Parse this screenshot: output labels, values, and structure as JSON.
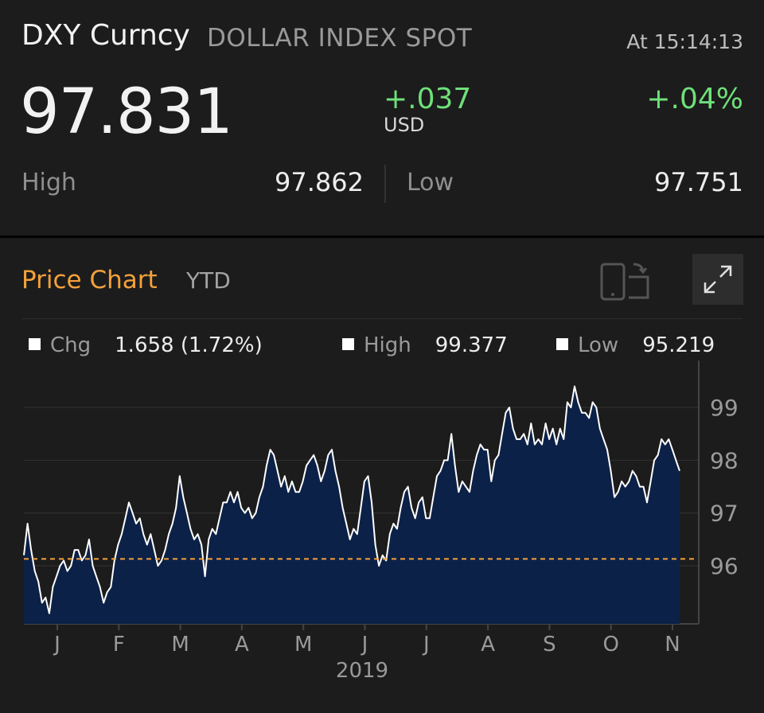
{
  "quote": {
    "ticker": "DXY Curncy",
    "name": "DOLLAR INDEX SPOT",
    "time": "At 15:14:13",
    "price": "97.831",
    "change": "+.037",
    "currency": "USD",
    "change_pct": "+.04%",
    "high_label": "High",
    "high_value": "97.862",
    "low_label": "Low",
    "low_value": "97.751"
  },
  "price_chart": {
    "title": "Price Chart",
    "range": "YTD",
    "rotate_icon": "rotate-device-icon",
    "expand_icon": "expand-icon",
    "stats": [
      {
        "label": "Chg",
        "value": "1.658 (1.72%)"
      },
      {
        "label": "High",
        "value": "99.377"
      },
      {
        "label": "Low",
        "value": "95.219"
      }
    ]
  },
  "colors": {
    "background": "#1c1c1c",
    "accent": "#f5a13b",
    "positive": "#6ee07a",
    "area_fill": "#0c2147",
    "line": "#ffffff",
    "reference_line": "#f5a13b"
  },
  "chart_data": {
    "type": "area",
    "x_tick_labels": [
      "J",
      "F",
      "M",
      "A",
      "M",
      "J",
      "J",
      "A",
      "S",
      "O",
      "N"
    ],
    "x_axis_year": "2019",
    "y_ticks": [
      96,
      97,
      98,
      99
    ],
    "ylim": [
      94.9,
      99.8
    ],
    "reference_value": 96.13,
    "grid": true,
    "series": [
      {
        "values": [
          96.2,
          96.8,
          96.3,
          95.9,
          95.7,
          95.3,
          95.4,
          95.1,
          95.6,
          95.8,
          96.0,
          96.1,
          95.9,
          96.0,
          96.3,
          96.3,
          96.1,
          96.2,
          96.5,
          96.0,
          95.8,
          95.6,
          95.3,
          95.5,
          95.6,
          96.1,
          96.4,
          96.6,
          96.9,
          97.2,
          97.0,
          96.8,
          96.9,
          96.6,
          96.4,
          96.6,
          96.3,
          96.0,
          96.1,
          96.3,
          96.6,
          96.8,
          97.1,
          97.7,
          97.3,
          97.0,
          96.7,
          96.5,
          96.6,
          96.4,
          95.8,
          96.5,
          96.7,
          96.6,
          96.9,
          97.2,
          97.2,
          97.4,
          97.2,
          97.4,
          97.1,
          97.0,
          97.1,
          96.9,
          97.0,
          97.3,
          97.5,
          97.9,
          98.2,
          98.1,
          97.8,
          97.5,
          97.7,
          97.4,
          97.6,
          97.4,
          97.4,
          97.6,
          97.9,
          98.0,
          98.1,
          97.9,
          97.6,
          97.8,
          98.1,
          98.2,
          97.8,
          97.5,
          97.1,
          96.8,
          96.5,
          96.7,
          96.6,
          97.1,
          97.6,
          97.7,
          97.2,
          96.4,
          96.0,
          96.2,
          96.1,
          96.6,
          96.8,
          96.7,
          97.1,
          97.4,
          97.5,
          97.1,
          96.9,
          97.2,
          97.3,
          96.9,
          96.9,
          97.3,
          97.7,
          97.8,
          98.0,
          98.0,
          98.5,
          97.9,
          97.4,
          97.6,
          97.5,
          97.4,
          97.8,
          98.1,
          98.3,
          98.2,
          98.2,
          97.6,
          98.0,
          98.1,
          98.5,
          98.9,
          99.0,
          98.6,
          98.4,
          98.4,
          98.5,
          98.3,
          98.7,
          98.3,
          98.4,
          98.3,
          98.7,
          98.4,
          98.6,
          98.3,
          98.6,
          98.4,
          99.1,
          99.0,
          99.4,
          99.1,
          98.9,
          98.9,
          98.8,
          99.1,
          99.0,
          98.6,
          98.4,
          98.2,
          97.8,
          97.3,
          97.4,
          97.6,
          97.5,
          97.6,
          97.8,
          97.7,
          97.5,
          97.5,
          97.2,
          97.6,
          98.0,
          98.1,
          98.4,
          98.3,
          98.4,
          98.2,
          98.0,
          97.8
        ]
      }
    ]
  }
}
